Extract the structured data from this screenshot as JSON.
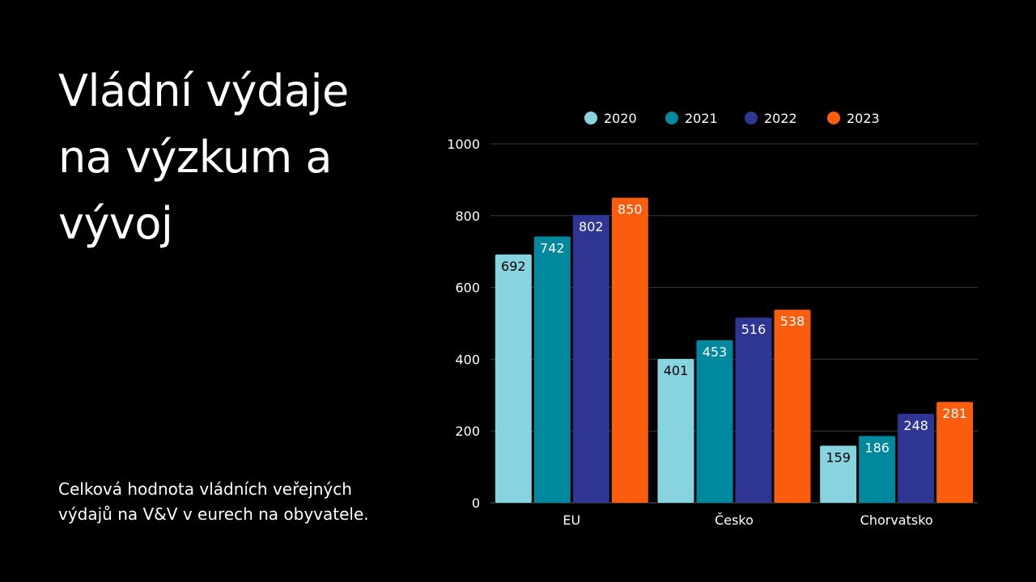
{
  "slide": {
    "title_lines": [
      "Vládní výdaje",
      "na výzkum a",
      "vývoj"
    ],
    "caption_lines": [
      "Celková hodnota vládních veřejných",
      "výdajů na V&V v eurech na obyvatele."
    ]
  },
  "chart_data": {
    "type": "bar",
    "categories": [
      "EU",
      "Česko",
      "Chorvatsko"
    ],
    "series": [
      {
        "name": "2020",
        "color": "#87d3df",
        "label_color": "#000000",
        "values": [
          692,
          401,
          159
        ]
      },
      {
        "name": "2021",
        "color": "#00899e",
        "label_color": "#ffffff",
        "values": [
          742,
          453,
          186
        ]
      },
      {
        "name": "2022",
        "color": "#2e3592",
        "label_color": "#ffffff",
        "values": [
          802,
          516,
          248
        ]
      },
      {
        "name": "2023",
        "color": "#f95d0d",
        "label_color": "#ffffff",
        "values": [
          850,
          538,
          281
        ]
      }
    ],
    "ylim": [
      0,
      1000
    ],
    "yticks": [
      0,
      200,
      400,
      600,
      800,
      1000
    ],
    "grid": true,
    "legend": "top",
    "gridline_color": "#3a3a3a"
  }
}
